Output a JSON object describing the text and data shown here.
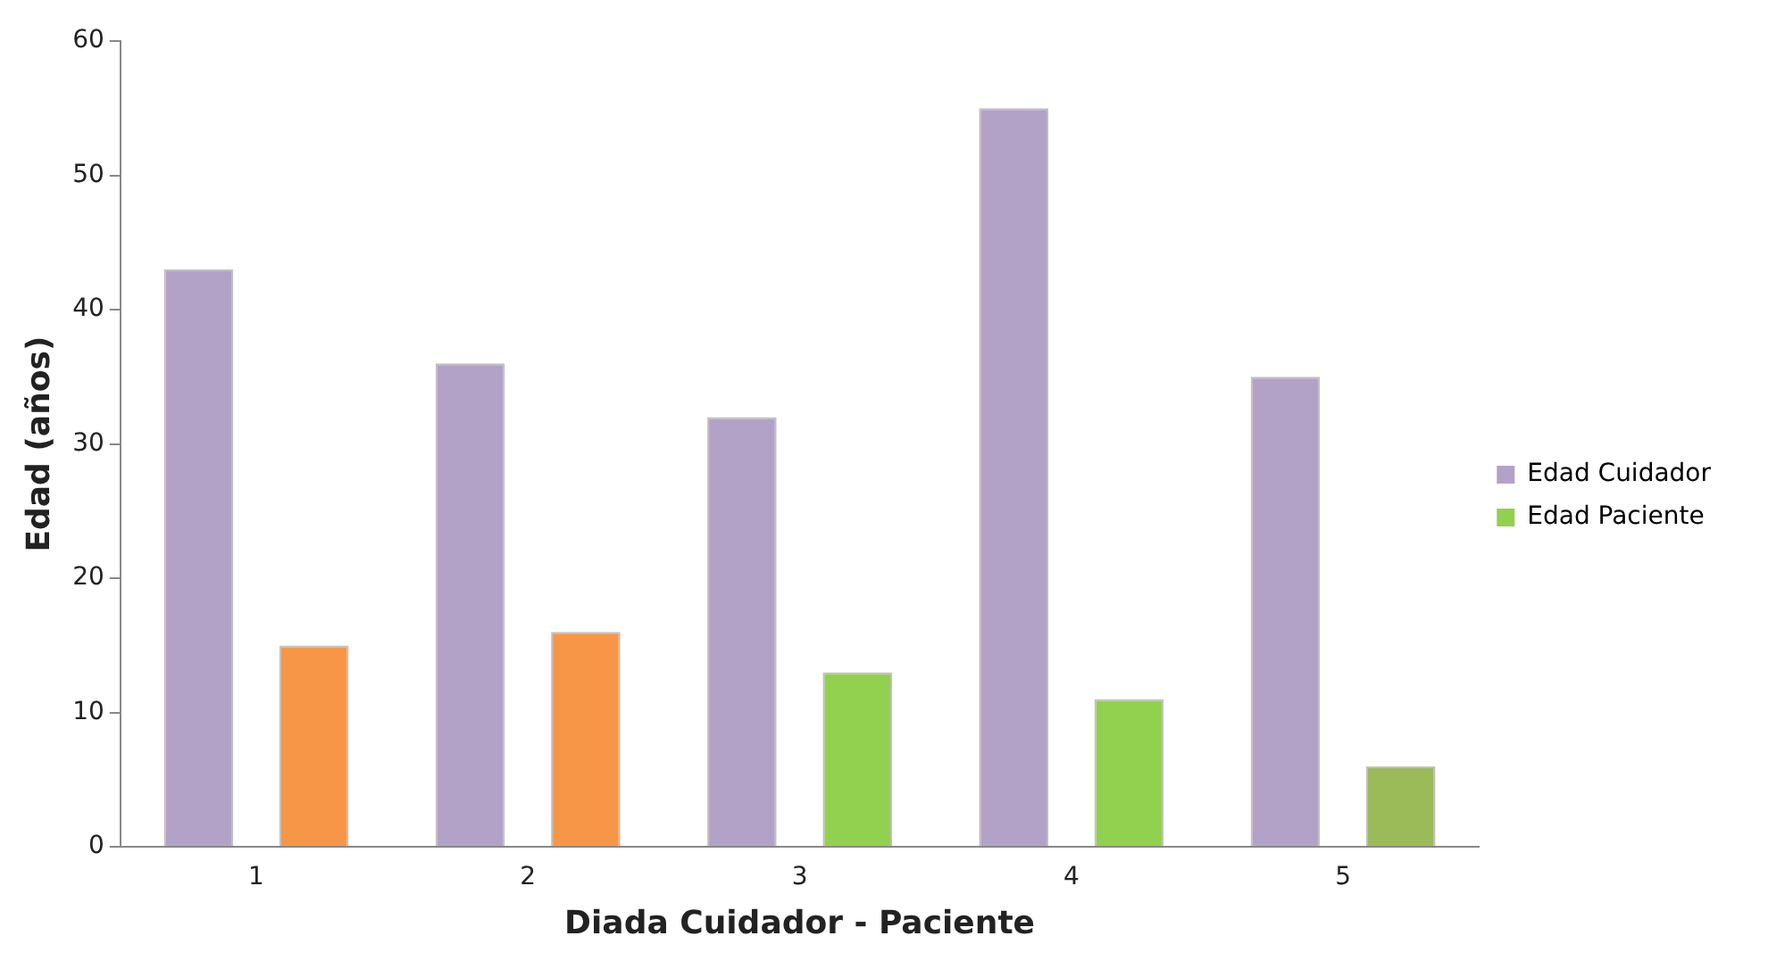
{
  "chart_data": {
    "type": "bar",
    "xlabel": "Diada Cuidador - Paciente",
    "ylabel": "Edad (años)",
    "categories": [
      "1",
      "2",
      "3",
      "4",
      "5"
    ],
    "series": [
      {
        "name": "Edad Cuidador",
        "color": "#b3a2c7",
        "values": [
          43,
          36,
          32,
          55,
          35
        ]
      },
      {
        "name": "Edad Paciente",
        "color": "#92d050",
        "colors": [
          "#f79646",
          "#f79646",
          "#92d050",
          "#92d050",
          "#9bbb59"
        ],
        "values": [
          15,
          16,
          13,
          11,
          6
        ]
      }
    ],
    "ylim": [
      0,
      60
    ],
    "yticks": [
      0,
      10,
      20,
      30,
      40,
      50,
      60
    ],
    "grid": false,
    "legend": "right"
  }
}
